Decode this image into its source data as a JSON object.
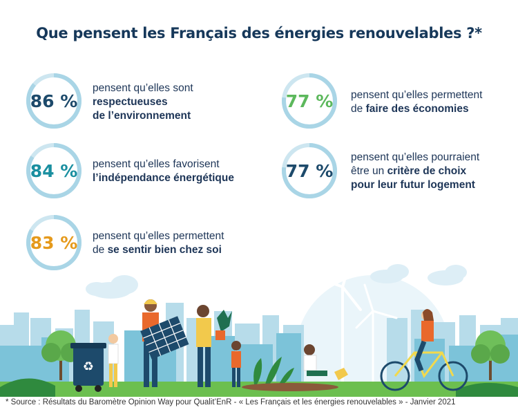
{
  "title": "Que pensent les Français des énergies renouvelables ?*",
  "colors": {
    "navy": "#1d4a6b",
    "teal": "#1a8fa0",
    "green": "#5cb85c",
    "orange": "#e59a1c",
    "ring_track": "#cde6f0"
  },
  "stats": [
    {
      "value": "86 %",
      "fraction": 0.86,
      "color": "#1d4a6b",
      "line1": "pensent qu’elles sont",
      "bold_prefix": "",
      "line2": "respectueuses",
      "line3": "de l’environnement"
    },
    {
      "value": "84 %",
      "fraction": 0.84,
      "color": "#1a8fa0",
      "line1": "pensent qu’elles favorisent",
      "bold_prefix": "",
      "line2": "l’indépendance énergétique",
      "line3": ""
    },
    {
      "value": "83 %",
      "fraction": 0.83,
      "color": "#e59a1c",
      "line1": "pensent qu’elles permettent",
      "bold_prefix": "de ",
      "line2": "se sentir bien chez soi",
      "line3": ""
    },
    {
      "value": "77 %",
      "fraction": 0.77,
      "color": "#5cb85c",
      "line1": "pensent qu’elles permettent",
      "bold_prefix": "de ",
      "line2": "faire des économies",
      "line3": ""
    },
    {
      "value": "77 %",
      "fraction": 0.77,
      "color": "#1d4a6b",
      "line1": "pensent qu’elles pourraient",
      "bold_prefix": "être un ",
      "line2": "critère de choix",
      "line3": "pour leur futur logement"
    }
  ],
  "footer": "* Source : Résultats du Baromètre Opinion Way pour Qualit’EnR - « Les Français et les énergies renouvelables » - Janvier 2021"
}
